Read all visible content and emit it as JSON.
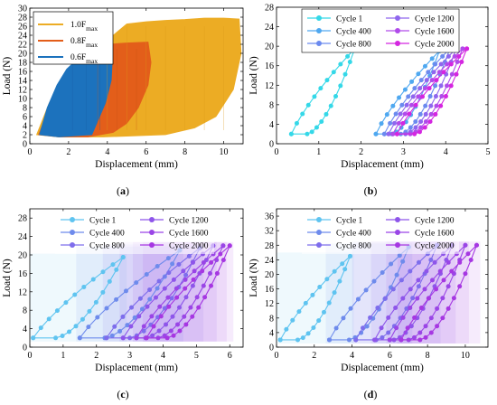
{
  "colors": {
    "yellow": "#ECAC24",
    "orange": "#E35E1A",
    "blue": "#1C72BD",
    "cycle_colors": [
      "#34D8E8",
      "#4FA8F0",
      "#6B8AEF",
      "#8F66EE",
      "#B04BEA",
      "#D426E0"
    ],
    "cycle_colors_cd": [
      "#5FC4F0",
      "#6E8BEC",
      "#7E6DEC",
      "#8E55EA",
      "#9A45E6",
      "#A637E2"
    ]
  },
  "chart_data": [
    {
      "type": "line",
      "panel_label": "(a)",
      "xlabel": "Displacement (mm)",
      "ylabel": "Load (N)",
      "xlim": [
        0,
        11
      ],
      "ylim": [
        0,
        30
      ],
      "xticks": [
        0,
        2,
        4,
        6,
        8,
        10
      ],
      "yticks": [
        0,
        2,
        4,
        6,
        8,
        10,
        12,
        14,
        16,
        18,
        20,
        22,
        24,
        26,
        28,
        30
      ],
      "legend_position": "top-left",
      "series": [
        {
          "name": "1.0F",
          "subscript": "max",
          "color_key": "yellow",
          "peak_load": 28,
          "max_displacement": 10.8
        },
        {
          "name": "0.8F",
          "subscript": "max",
          "color_key": "orange",
          "peak_load": 22.5,
          "max_displacement": 6.2
        },
        {
          "name": "0.6F",
          "subscript": "max",
          "color_key": "blue",
          "peak_load": 19.5,
          "max_displacement": 4.2
        }
      ]
    },
    {
      "type": "line",
      "panel_label": "(b)",
      "xlabel": "Displacement (mm)",
      "ylabel": "Load (N)",
      "xlim": [
        0,
        5
      ],
      "ylim": [
        0,
        28
      ],
      "xticks": [
        0,
        1,
        2,
        3,
        4,
        5
      ],
      "yticks": [
        0,
        4,
        8,
        12,
        16,
        20,
        24,
        28
      ],
      "legend_position": "top",
      "series": [
        {
          "name": "Cycle 1",
          "loop": [
            0.35,
            2.0,
            1.85,
            19.5
          ]
        },
        {
          "name": "Cycle 400",
          "loop": [
            2.35,
            2.0,
            3.85,
            19.0
          ]
        },
        {
          "name": "Cycle 800",
          "loop": [
            2.55,
            2.0,
            4.1,
            19.5
          ]
        },
        {
          "name": "Cycle 1200",
          "loop": [
            2.65,
            2.0,
            4.25,
            19.5
          ]
        },
        {
          "name": "Cycle 1600",
          "loop": [
            2.75,
            2.0,
            4.4,
            19.5
          ]
        },
        {
          "name": "Cycle 2000",
          "loop": [
            2.85,
            2.0,
            4.5,
            19.5
          ]
        }
      ]
    },
    {
      "type": "line",
      "panel_label": "(c)",
      "xlabel": "Displacement (mm)",
      "ylabel": "Load (N)",
      "xlim": [
        0,
        6.4
      ],
      "ylim": [
        0,
        30
      ],
      "xticks": [
        0,
        1,
        2,
        3,
        4,
        5,
        6
      ],
      "yticks": [
        0,
        4,
        8,
        12,
        16,
        20,
        24,
        28
      ],
      "legend_position": "top",
      "series": [
        {
          "name": "Cycle 1",
          "loop": [
            0.1,
            2.0,
            2.8,
            19.5
          ]
        },
        {
          "name": "Cycle 400",
          "loop": [
            1.5,
            2.0,
            4.5,
            21.0
          ]
        },
        {
          "name": "Cycle 800",
          "loop": [
            2.3,
            2.0,
            5.1,
            21.5
          ]
        },
        {
          "name": "Cycle 1200",
          "loop": [
            2.8,
            2.0,
            5.5,
            22.0
          ]
        },
        {
          "name": "Cycle 1600",
          "loop": [
            3.2,
            2.0,
            5.8,
            22.0
          ]
        },
        {
          "name": "Cycle 2000",
          "loop": [
            3.5,
            2.0,
            6.0,
            22.0
          ]
        }
      ]
    },
    {
      "type": "line",
      "panel_label": "(d)",
      "xlabel": "Displacement (mm)",
      "ylabel": "Load (N)",
      "xlim": [
        0,
        11.2
      ],
      "ylim": [
        0,
        38
      ],
      "xticks": [
        0,
        2,
        4,
        6,
        8,
        10
      ],
      "yticks": [
        0,
        4,
        8,
        12,
        16,
        20,
        24,
        28,
        32,
        36
      ],
      "legend_position": "top",
      "series": [
        {
          "name": "Cycle 1",
          "loop": [
            0.2,
            2.0,
            3.9,
            25.0
          ]
        },
        {
          "name": "Cycle 400",
          "loop": [
            2.8,
            2.0,
            7.0,
            27.5
          ]
        },
        {
          "name": "Cycle 800",
          "loop": [
            4.2,
            2.0,
            8.5,
            28.0
          ]
        },
        {
          "name": "Cycle 1200",
          "loop": [
            5.2,
            2.0,
            9.3,
            28.0
          ]
        },
        {
          "name": "Cycle 1600",
          "loop": [
            6.0,
            2.0,
            10.0,
            28.0
          ]
        },
        {
          "name": "Cycle 2000",
          "loop": [
            6.6,
            2.0,
            10.6,
            28.0
          ]
        }
      ]
    }
  ]
}
